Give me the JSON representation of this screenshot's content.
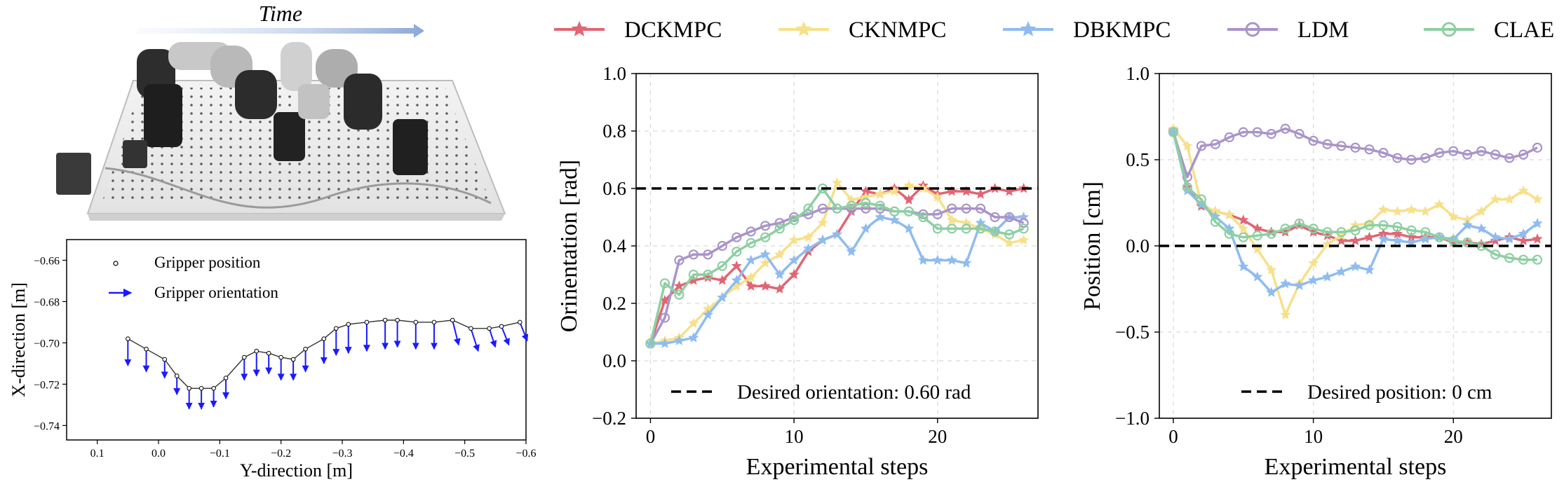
{
  "photo": {
    "time_label": "Time"
  },
  "legend": {
    "items": [
      {
        "label": "DCKMPC",
        "color": "#e06674",
        "marker": "star"
      },
      {
        "label": "CKNMPC",
        "color": "#f7e08a",
        "marker": "star"
      },
      {
        "label": "DBKMPC",
        "color": "#8fbcef",
        "marker": "star"
      },
      {
        "label": "LDM",
        "color": "#a994c9",
        "marker": "circle"
      },
      {
        "label": "CLAE",
        "color": "#8dcfa2",
        "marker": "circle"
      }
    ]
  },
  "chart_data": [
    {
      "type": "scatter",
      "panel": "trajectory",
      "title": "",
      "xlabel": "Y-direction [m]",
      "ylabel": "X-direction [m]",
      "xlim": [
        0.15,
        -0.6
      ],
      "ylim": [
        -0.747,
        -0.65
      ],
      "x_ticks": [
        0.1,
        0.0,
        -0.1,
        -0.2,
        -0.3,
        -0.4,
        -0.5,
        -0.6
      ],
      "x_tick_labels": [
        "0.1",
        "0.0",
        "−0.1",
        "−0.2",
        "−0.3",
        "−0.4",
        "−0.5",
        "−0.6"
      ],
      "y_ticks": [
        -0.66,
        -0.68,
        -0.7,
        -0.72,
        -0.74
      ],
      "y_tick_labels": [
        "−0.66",
        "−0.68",
        "−0.70",
        "−0.72",
        "−0.74"
      ],
      "legend_position": "top-left",
      "series": [
        {
          "name": "Gripper position",
          "color": "#000000"
        },
        {
          "name": "Gripper orientation",
          "color": "#1a1aff"
        }
      ],
      "x": [
        0.05,
        0.02,
        -0.01,
        -0.03,
        -0.05,
        -0.07,
        -0.09,
        -0.11,
        -0.14,
        -0.16,
        -0.18,
        -0.2,
        -0.22,
        -0.24,
        -0.27,
        -0.29,
        -0.31,
        -0.34,
        -0.37,
        -0.39,
        -0.42,
        -0.45,
        -0.48,
        -0.51,
        -0.54,
        -0.56,
        -0.59
      ],
      "y": [
        -0.698,
        -0.703,
        -0.708,
        -0.716,
        -0.722,
        -0.722,
        -0.722,
        -0.717,
        -0.707,
        -0.704,
        -0.705,
        -0.707,
        -0.708,
        -0.703,
        -0.698,
        -0.693,
        -0.691,
        -0.69,
        -0.689,
        -0.689,
        -0.69,
        -0.69,
        -0.689,
        -0.693,
        -0.693,
        -0.692,
        -0.69
      ],
      "arrow_length": [
        0.013,
        0.011,
        0.009,
        0.009,
        0.01,
        0.01,
        0.009,
        0.01,
        0.011,
        0.012,
        0.01,
        0.011,
        0.01,
        0.011,
        0.012,
        0.013,
        0.014,
        0.014,
        0.014,
        0.013,
        0.013,
        0.013,
        0.012,
        0.011,
        0.009,
        0.009,
        0.009
      ],
      "arrow_dx": [
        0.0,
        0.0,
        0.0,
        0.0,
        0.0,
        0.0,
        0.0,
        0.0,
        0.0,
        0.0,
        0.0,
        0.0,
        0.0,
        0.0,
        0.0,
        0.0,
        0.0,
        0.0,
        0.0,
        0.0,
        0.0,
        0.0,
        -0.01,
        -0.012,
        -0.01,
        -0.012,
        -0.012
      ]
    },
    {
      "type": "line",
      "panel": "orientation",
      "title": "",
      "xlabel": "Experimental steps",
      "ylabel": "Orinentation [rad]",
      "xlim": [
        -1,
        27
      ],
      "ylim": [
        -0.2,
        1.0
      ],
      "x_ticks": [
        0,
        10,
        20
      ],
      "y_ticks": [
        -0.2,
        0.0,
        0.2,
        0.4,
        0.6,
        0.8,
        1.0
      ],
      "y_tick_labels": [
        "−0.2",
        "0.0",
        "0.2",
        "0.4",
        "0.6",
        "0.8",
        "1.0"
      ],
      "grid": true,
      "reference": {
        "value": 0.6,
        "label": "Desired orientation: 0.60 rad"
      },
      "legend_position": "bottom-right",
      "x": [
        0,
        1,
        2,
        3,
        4,
        5,
        6,
        7,
        8,
        9,
        10,
        11,
        12,
        13,
        14,
        15,
        16,
        17,
        18,
        19,
        20,
        21,
        22,
        23,
        24,
        25,
        26
      ],
      "series": [
        {
          "name": "DCKMPC",
          "values": [
            0.06,
            0.21,
            0.26,
            0.28,
            0.29,
            0.28,
            0.33,
            0.26,
            0.26,
            0.25,
            0.3,
            0.38,
            0.42,
            0.44,
            0.52,
            0.59,
            0.58,
            0.6,
            0.56,
            0.61,
            0.58,
            0.59,
            0.59,
            0.58,
            0.6,
            0.59,
            0.6
          ]
        },
        {
          "name": "CKNMPC",
          "values": [
            0.06,
            0.07,
            0.08,
            0.13,
            0.18,
            0.22,
            0.26,
            0.29,
            0.34,
            0.37,
            0.42,
            0.43,
            0.48,
            0.62,
            0.56,
            0.57,
            0.58,
            0.59,
            0.61,
            0.6,
            0.57,
            0.49,
            0.48,
            0.46,
            0.44,
            0.41,
            0.42
          ]
        },
        {
          "name": "DBKMPC",
          "values": [
            0.06,
            0.06,
            0.07,
            0.08,
            0.16,
            0.22,
            0.28,
            0.35,
            0.37,
            0.3,
            0.35,
            0.39,
            0.42,
            0.44,
            0.38,
            0.46,
            0.5,
            0.49,
            0.46,
            0.35,
            0.35,
            0.35,
            0.34,
            0.48,
            0.45,
            0.5,
            0.5
          ]
        },
        {
          "name": "LDM",
          "values": [
            0.06,
            0.15,
            0.35,
            0.37,
            0.37,
            0.4,
            0.43,
            0.45,
            0.47,
            0.48,
            0.5,
            0.51,
            0.53,
            0.53,
            0.53,
            0.53,
            0.53,
            0.52,
            0.52,
            0.51,
            0.51,
            0.53,
            0.53,
            0.53,
            0.5,
            0.5,
            0.48
          ]
        },
        {
          "name": "CLAE",
          "values": [
            0.06,
            0.27,
            0.23,
            0.3,
            0.3,
            0.33,
            0.38,
            0.41,
            0.43,
            0.46,
            0.49,
            0.53,
            0.6,
            0.53,
            0.54,
            0.55,
            0.54,
            0.52,
            0.52,
            0.5,
            0.46,
            0.46,
            0.46,
            0.46,
            0.45,
            0.44,
            0.46
          ]
        }
      ]
    },
    {
      "type": "line",
      "panel": "position",
      "title": "",
      "xlabel": "Experimental steps",
      "ylabel": "Position [cm]",
      "xlim": [
        -1,
        27
      ],
      "ylim": [
        -1.0,
        1.0
      ],
      "x_ticks": [
        0,
        10,
        20
      ],
      "y_ticks": [
        -1.0,
        -0.5,
        0.0,
        0.5,
        1.0
      ],
      "y_tick_labels": [
        "−1.0",
        "−0.5",
        "0.0",
        "0.5",
        "1.0"
      ],
      "grid": true,
      "reference": {
        "value": 0.0,
        "label": "Desired position: 0 cm"
      },
      "legend_position": "bottom-right",
      "x": [
        0,
        1,
        2,
        3,
        4,
        5,
        6,
        7,
        8,
        9,
        10,
        11,
        12,
        13,
        14,
        15,
        16,
        17,
        18,
        19,
        20,
        21,
        22,
        23,
        24,
        25,
        26
      ],
      "series": [
        {
          "name": "DCKMPC",
          "values": [
            0.67,
            0.34,
            0.23,
            0.2,
            0.18,
            0.15,
            0.1,
            0.08,
            0.08,
            0.12,
            0.08,
            0.06,
            0.03,
            0.03,
            0.05,
            0.07,
            0.07,
            0.05,
            0.05,
            0.05,
            0.02,
            0.02,
            0.01,
            0.03,
            0.05,
            0.03,
            0.04
          ]
        },
        {
          "name": "CKNMPC",
          "values": [
            0.68,
            0.58,
            0.24,
            0.2,
            0.18,
            0.1,
            -0.02,
            -0.14,
            -0.4,
            -0.22,
            -0.1,
            0.01,
            0.06,
            0.12,
            0.13,
            0.21,
            0.2,
            0.21,
            0.2,
            0.24,
            0.17,
            0.15,
            0.2,
            0.27,
            0.27,
            0.32,
            0.27
          ]
        },
        {
          "name": "DBKMPC",
          "values": [
            0.66,
            0.32,
            0.24,
            0.17,
            0.1,
            -0.12,
            -0.18,
            -0.27,
            -0.22,
            -0.23,
            -0.2,
            -0.18,
            -0.15,
            -0.12,
            -0.14,
            0.04,
            0.03,
            0.02,
            0.04,
            0.05,
            0.04,
            0.12,
            0.1,
            0.05,
            0.04,
            0.07,
            0.13
          ]
        },
        {
          "name": "LDM",
          "values": [
            0.66,
            0.4,
            0.58,
            0.59,
            0.63,
            0.66,
            0.66,
            0.65,
            0.68,
            0.65,
            0.61,
            0.59,
            0.58,
            0.57,
            0.56,
            0.54,
            0.51,
            0.5,
            0.51,
            0.54,
            0.55,
            0.53,
            0.55,
            0.53,
            0.51,
            0.53,
            0.57
          ]
        },
        {
          "name": "CLAE",
          "values": [
            0.66,
            0.34,
            0.27,
            0.14,
            0.07,
            0.05,
            0.06,
            0.07,
            0.1,
            0.13,
            0.1,
            0.08,
            0.08,
            0.09,
            0.12,
            0.12,
            0.11,
            0.09,
            0.08,
            0.05,
            0.03,
            0.02,
            0.0,
            -0.05,
            -0.07,
            -0.08,
            -0.08
          ]
        }
      ]
    }
  ]
}
